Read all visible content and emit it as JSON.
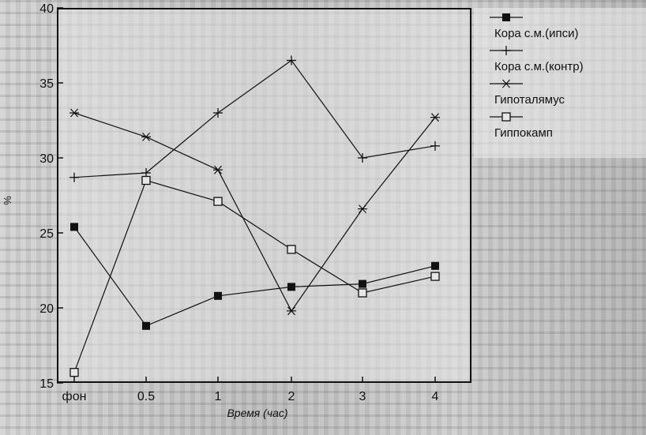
{
  "chart_data": {
    "type": "line",
    "title": "",
    "xlabel": "Время (час)",
    "ylabel": "%",
    "categories": [
      "фон",
      "0.5",
      "1",
      "2",
      "3",
      "4"
    ],
    "y_ticks": [
      15,
      20,
      25,
      30,
      35,
      40
    ],
    "ylim": [
      15,
      40
    ],
    "grid": false,
    "legend_position": "right, outside plot",
    "series": [
      {
        "name": "Кора с.м.(ипси)",
        "marker": "filled-square",
        "values": [
          25.4,
          18.8,
          20.8,
          21.4,
          21.6,
          22.8
        ]
      },
      {
        "name": "Кора с.м.(контр)",
        "marker": "plus",
        "values": [
          28.7,
          29.0,
          33.0,
          36.5,
          30.0,
          30.8
        ]
      },
      {
        "name": "Гипоталямус",
        "marker": "asterisk",
        "values": [
          33.0,
          31.4,
          29.2,
          19.8,
          26.6,
          32.7
        ]
      },
      {
        "name": "Гиппокамп",
        "marker": "open-square",
        "values": [
          15.7,
          28.5,
          27.1,
          23.9,
          21.0,
          22.1
        ]
      }
    ]
  }
}
